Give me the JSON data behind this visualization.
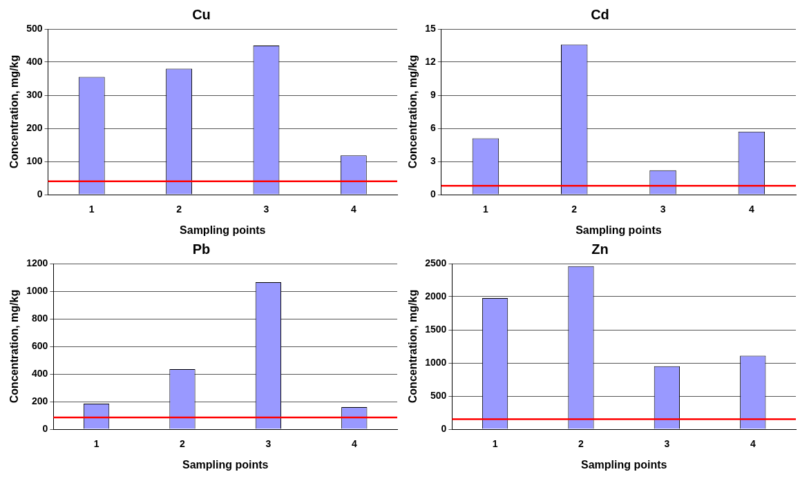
{
  "chart_data": [
    {
      "type": "bar",
      "title": "Cu",
      "xlabel": "Sampling points",
      "ylabel": "Concentration, mg/kg",
      "categories": [
        "1",
        "2",
        "3",
        "4"
      ],
      "values": [
        355,
        380,
        450,
        118
      ],
      "color": "#9999ff",
      "ylim": [
        0,
        500
      ],
      "yticks": [
        0,
        100,
        200,
        300,
        400,
        500
      ],
      "grid": "y",
      "ref_lines": [
        {
          "axis": "y",
          "value": 40,
          "color": "#ff0000"
        }
      ]
    },
    {
      "type": "bar",
      "title": "Cd",
      "xlabel": "Sampling points",
      "ylabel": "Concentration, mg/kg",
      "categories": [
        "1",
        "2",
        "3",
        "4"
      ],
      "values": [
        5.1,
        13.6,
        2.2,
        5.7
      ],
      "color": "#9999ff",
      "ylim": [
        0,
        15
      ],
      "yticks": [
        0,
        3,
        6,
        9,
        12,
        15
      ],
      "grid": "y",
      "ref_lines": [
        {
          "axis": "y",
          "value": 0.8,
          "color": "#ff0000"
        }
      ]
    },
    {
      "type": "bar",
      "title": "Pb",
      "xlabel": "Sampling points",
      "ylabel": "Concentration, mg/kg",
      "categories": [
        "1",
        "2",
        "3",
        "4"
      ],
      "values": [
        185,
        435,
        1065,
        160
      ],
      "color": "#9999ff",
      "ylim": [
        0,
        1200
      ],
      "yticks": [
        0,
        200,
        400,
        600,
        800,
        1000,
        1200
      ],
      "grid": "y",
      "ref_lines": [
        {
          "axis": "y",
          "value": 85,
          "color": "#ff0000"
        }
      ]
    },
    {
      "type": "bar",
      "title": "Zn",
      "xlabel": "Sampling points",
      "ylabel": "Concentration, mg/kg",
      "categories": [
        "1",
        "2",
        "3",
        "4"
      ],
      "values": [
        1980,
        2460,
        950,
        1110
      ],
      "color": "#9999ff",
      "ylim": [
        0,
        2500
      ],
      "yticks": [
        0,
        500,
        1000,
        1500,
        2000,
        2500
      ],
      "grid": "y",
      "ref_lines": [
        {
          "axis": "y",
          "value": 150,
          "color": "#ff0000"
        }
      ]
    }
  ]
}
